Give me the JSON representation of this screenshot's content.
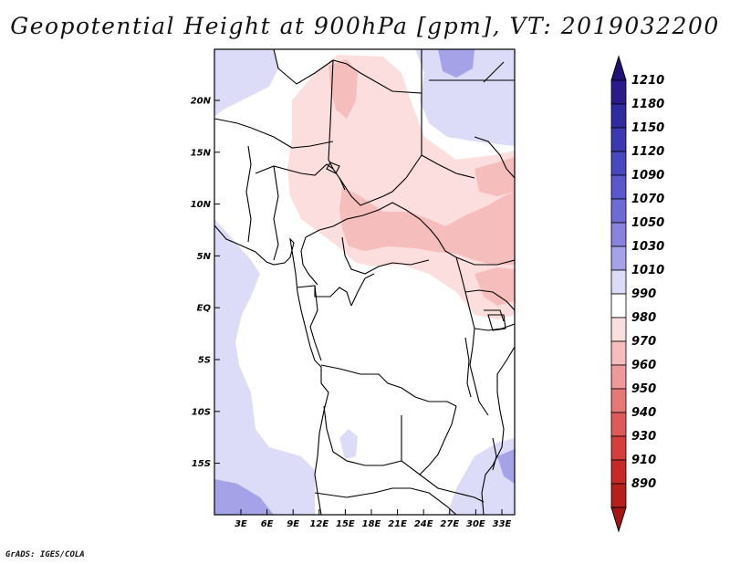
{
  "title": "Geopotential Height at 900hPa [gpm], VT: 2019032200",
  "credit": "GrADS: IGES/COLA",
  "map": {
    "variable": "Geopotential Height",
    "level": "900hPa",
    "units": "gpm",
    "valid_time": "2019032200",
    "lat_labels": [
      "20N",
      "15N",
      "10N",
      "5N",
      "EQ",
      "5S",
      "10S",
      "15S"
    ],
    "lon_labels": [
      "3E",
      "6E",
      "9E",
      "12E",
      "15E",
      "18E",
      "21E",
      "24E",
      "27E",
      "30E",
      "33E"
    ]
  },
  "colorbar": {
    "levels": [
      {
        "label": "1210",
        "color": "#2a1a8c"
      },
      {
        "label": "1180",
        "color": "#2f2aa0"
      },
      {
        "label": "1150",
        "color": "#3a38b2"
      },
      {
        "label": "1120",
        "color": "#4747c0"
      },
      {
        "label": "1090",
        "color": "#5a58cc"
      },
      {
        "label": "1070",
        "color": "#6f6bd6"
      },
      {
        "label": "1050",
        "color": "#8783df"
      },
      {
        "label": "1030",
        "color": "#a6a2e8"
      },
      {
        "label": "1010",
        "color": "#dcdcf8"
      },
      {
        "label": "990",
        "color": "#ffffff"
      },
      {
        "label": "980",
        "color": "#fbdedd"
      },
      {
        "label": "970",
        "color": "#f5bdbb"
      },
      {
        "label": "960",
        "color": "#ee9a98"
      },
      {
        "label": "950",
        "color": "#e67876"
      },
      {
        "label": "940",
        "color": "#de5a58"
      },
      {
        "label": "930",
        "color": "#d43e3c"
      },
      {
        "label": "910",
        "color": "#c52a28"
      },
      {
        "label": "890",
        "color": "#b51f1c"
      }
    ],
    "top_color": "#1f137a",
    "bottom_color": "#a81412"
  }
}
